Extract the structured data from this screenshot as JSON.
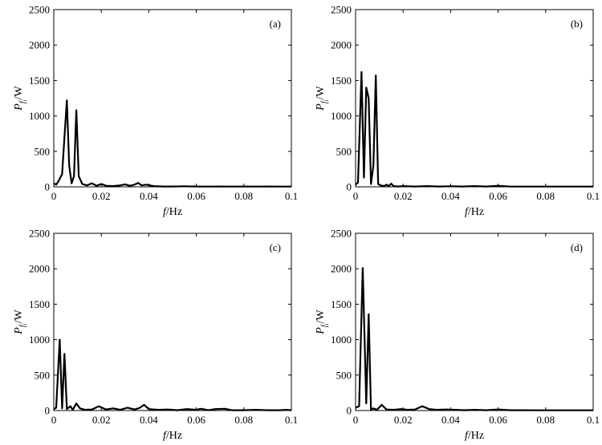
{
  "chart_data": [
    {
      "type": "line",
      "panel_label": "(a)",
      "xlabel": "f/Hz",
      "ylabel": "P_{f_i}/W",
      "xlim": [
        0,
        0.1
      ],
      "ylim": [
        0,
        2500
      ],
      "xticks": [
        0,
        0.02,
        0.04,
        0.06,
        0.08,
        0.1
      ],
      "xtick_labels": [
        "0",
        "0.02",
        "0.04",
        "0.06",
        "0.08",
        "0.1"
      ],
      "yticks": [
        0,
        500,
        1000,
        1500,
        2000,
        2500
      ],
      "ytick_labels": [
        "0",
        "500",
        "1000",
        "1500",
        "2000",
        "2500"
      ],
      "series": [
        {
          "x": [
            0,
            0.001,
            0.002,
            0.0035,
            0.0045,
            0.0055,
            0.0065,
            0.0075,
            0.0085,
            0.0095,
            0.0105,
            0.012,
            0.014,
            0.016,
            0.018,
            0.02,
            0.022,
            0.025,
            0.028,
            0.03,
            0.032,
            0.034,
            0.0355,
            0.037,
            0.039,
            0.042,
            0.046,
            0.05,
            0.055,
            0.06,
            0.065,
            0.07,
            0.075,
            0.08,
            0.085,
            0.09,
            0.095,
            0.1
          ],
          "y": [
            50,
            30,
            80,
            180,
            700,
            1220,
            300,
            50,
            150,
            1080,
            150,
            40,
            20,
            50,
            15,
            40,
            15,
            10,
            20,
            35,
            15,
            30,
            55,
            20,
            30,
            10,
            5,
            5,
            8,
            5,
            3,
            5,
            3,
            5,
            3,
            5,
            3,
            3
          ]
        }
      ]
    },
    {
      "type": "line",
      "panel_label": "(b)",
      "xlabel": "f/Hz",
      "ylabel": "P_{f_i}/W",
      "xlim": [
        0,
        0.1
      ],
      "ylim": [
        0,
        2500
      ],
      "xticks": [
        0,
        0.02,
        0.04,
        0.06,
        0.08,
        0.1
      ],
      "xtick_labels": [
        "0",
        "0.02",
        "0.04",
        "0.06",
        "0.08",
        "0.1"
      ],
      "yticks": [
        0,
        500,
        1000,
        1500,
        2000,
        2500
      ],
      "ytick_labels": [
        "0",
        "500",
        "1000",
        "1500",
        "2000",
        "2500"
      ],
      "series": [
        {
          "x": [
            0,
            0.001,
            0.0025,
            0.0035,
            0.0045,
            0.0055,
            0.0065,
            0.0075,
            0.0085,
            0.0095,
            0.0105,
            0.012,
            0.013,
            0.014,
            0.015,
            0.016,
            0.018,
            0.02,
            0.025,
            0.03,
            0.035,
            0.04,
            0.045,
            0.05,
            0.055,
            0.06,
            0.065,
            0.07,
            0.08,
            0.09,
            0.1
          ],
          "y": [
            30,
            60,
            1620,
            130,
            1400,
            1250,
            40,
            300,
            1570,
            40,
            20,
            10,
            30,
            10,
            45,
            10,
            5,
            10,
            5,
            10,
            5,
            8,
            5,
            10,
            5,
            15,
            3,
            3,
            3,
            3,
            3
          ]
        }
      ]
    },
    {
      "type": "line",
      "panel_label": "(c)",
      "xlabel": "f/Hz",
      "ylabel": "P_{f_i}/W",
      "xlim": [
        0,
        0.1
      ],
      "ylim": [
        0,
        2500
      ],
      "xticks": [
        0,
        0.02,
        0.04,
        0.06,
        0.08,
        0.1
      ],
      "xtick_labels": [
        "0",
        "0.02",
        "0.04",
        "0.06",
        "0.08",
        "0.1"
      ],
      "yticks": [
        0,
        500,
        1000,
        1500,
        2000,
        2500
      ],
      "ytick_labels": [
        "0",
        "500",
        "1000",
        "1500",
        "2000",
        "2500"
      ],
      "series": [
        {
          "x": [
            0,
            0.001,
            0.0025,
            0.0035,
            0.0045,
            0.0055,
            0.007,
            0.008,
            0.0095,
            0.011,
            0.013,
            0.016,
            0.019,
            0.022,
            0.025,
            0.028,
            0.031,
            0.034,
            0.036,
            0.038,
            0.04,
            0.044,
            0.048,
            0.052,
            0.056,
            0.06,
            0.062,
            0.065,
            0.068,
            0.072,
            0.075,
            0.08,
            0.085,
            0.09,
            0.095,
            0.098,
            0.1
          ],
          "y": [
            20,
            40,
            1000,
            30,
            800,
            20,
            60,
            10,
            100,
            30,
            10,
            15,
            60,
            15,
            30,
            10,
            40,
            15,
            35,
            80,
            20,
            10,
            15,
            5,
            20,
            10,
            25,
            5,
            20,
            25,
            5,
            5,
            10,
            5,
            5,
            10,
            3
          ]
        }
      ]
    },
    {
      "type": "line",
      "panel_label": "(d)",
      "xlabel": "f/Hz",
      "ylabel": "P_{f_i}/W",
      "xlim": [
        0,
        0.1
      ],
      "ylim": [
        0,
        2500
      ],
      "xticks": [
        0,
        0.02,
        0.04,
        0.06,
        0.08,
        0.1
      ],
      "xtick_labels": [
        "0",
        "0.02",
        "0.04",
        "0.06",
        "0.08",
        "0.1"
      ],
      "yticks": [
        0,
        500,
        1000,
        1500,
        2000,
        2500
      ],
      "ytick_labels": [
        "0",
        "500",
        "1000",
        "1500",
        "2000",
        "2500"
      ],
      "series": [
        {
          "x": [
            0,
            0.0015,
            0.003,
            0.0045,
            0.0055,
            0.0065,
            0.0075,
            0.009,
            0.011,
            0.013,
            0.016,
            0.019,
            0.022,
            0.025,
            0.028,
            0.031,
            0.034,
            0.038,
            0.042,
            0.046,
            0.05,
            0.055,
            0.06,
            0.065,
            0.07,
            0.075,
            0.08,
            0.09,
            0.1
          ],
          "y": [
            40,
            60,
            2010,
            100,
            1360,
            10,
            30,
            10,
            80,
            15,
            10,
            20,
            10,
            15,
            60,
            20,
            10,
            15,
            10,
            5,
            10,
            5,
            15,
            5,
            5,
            3,
            3,
            3,
            3
          ]
        }
      ]
    }
  ]
}
